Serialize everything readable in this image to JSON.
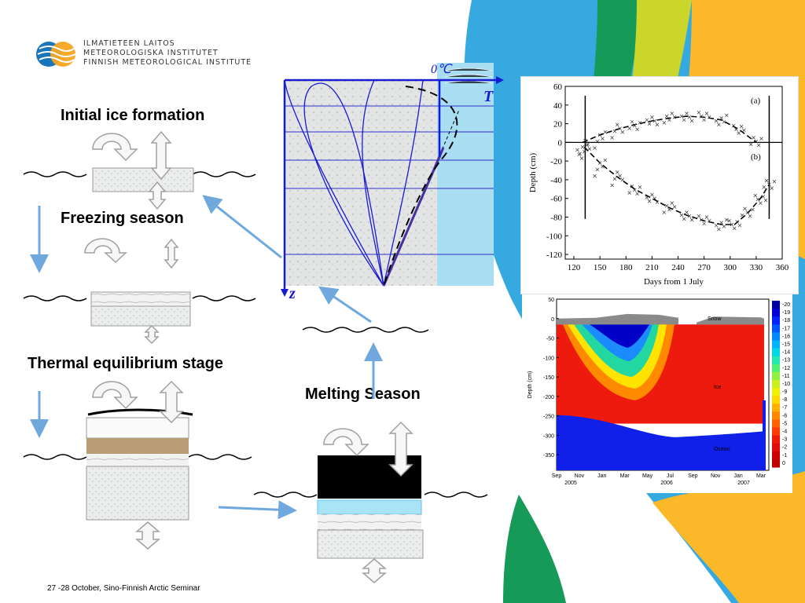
{
  "logo": {
    "lines": [
      "ILMATIETEEN LAITOS",
      "METEOROLOGISKA INSTITUTET",
      "FINNISH METEOROLOGICAL INSTITUTE"
    ],
    "colors": {
      "blue": "#1b75bb",
      "orange": "#f5a623"
    }
  },
  "stages": {
    "initial": "Initial ice formation",
    "freezing": "Freezing season",
    "equilibrium": "Thermal equilibrium stage",
    "melting": "Melting Season"
  },
  "profile": {
    "zero_label": "0℃",
    "t_label": "T",
    "z_label": "z"
  },
  "footer": "27 -28 October, Sino-Finnish Arctic Seminar",
  "chart_data": [
    {
      "type": "scatter",
      "xlabel": "Days from 1 July",
      "ylabel": "Depth (cm)",
      "xlim": [
        110,
        360
      ],
      "ylim": [
        -125,
        60
      ],
      "xticks": [
        120,
        150,
        180,
        210,
        240,
        270,
        300,
        330,
        360
      ],
      "yticks": [
        60,
        40,
        20,
        0,
        -20,
        -40,
        -60,
        -80,
        -100,
        -120
      ],
      "panel_labels": [
        "(a)",
        "(b)"
      ],
      "series": [
        {
          "name": "(a)",
          "x": [
            130,
            150,
            170,
            190,
            210,
            230,
            250,
            270,
            290,
            310,
            330
          ],
          "y": [
            0,
            8,
            14,
            19,
            23,
            26,
            28,
            27,
            24,
            14,
            0
          ]
        },
        {
          "name": "(b)",
          "x": [
            132,
            150,
            170,
            190,
            210,
            230,
            250,
            270,
            290,
            305,
            320,
            335,
            345
          ],
          "y": [
            -5,
            -22,
            -37,
            -50,
            -60,
            -70,
            -78,
            -84,
            -88,
            -88,
            -76,
            -60,
            -45
          ]
        }
      ],
      "grid": false
    },
    {
      "type": "heatmap",
      "ylabel": "Depth (cm)",
      "ylim": [
        -390,
        50
      ],
      "yticks": [
        50,
        0,
        -50,
        -100,
        -150,
        -200,
        -250,
        -300,
        -350
      ],
      "xticks": [
        "Sep",
        "Nov",
        "Jan",
        "Mar",
        "May",
        "Jul",
        "Sep",
        "Nov",
        "Jan",
        "Mar"
      ],
      "years": [
        "2005",
        "2006",
        "2007"
      ],
      "annotations": [
        "Snow",
        "Ice",
        "Ocean"
      ],
      "colorbar": [
        -20,
        -19,
        -18,
        -17,
        -16,
        -15,
        -14,
        -13,
        -12,
        -11,
        -10,
        -9,
        -8,
        -7,
        -6,
        -5,
        -4,
        -3,
        -2,
        -1,
        0
      ],
      "colors": {
        "cold": "#0000c8",
        "mid": "#22d8a0",
        "warm": "#ee1a0e",
        "ocean": "#1020e8",
        "snow": "#8a8a8a"
      }
    }
  ]
}
